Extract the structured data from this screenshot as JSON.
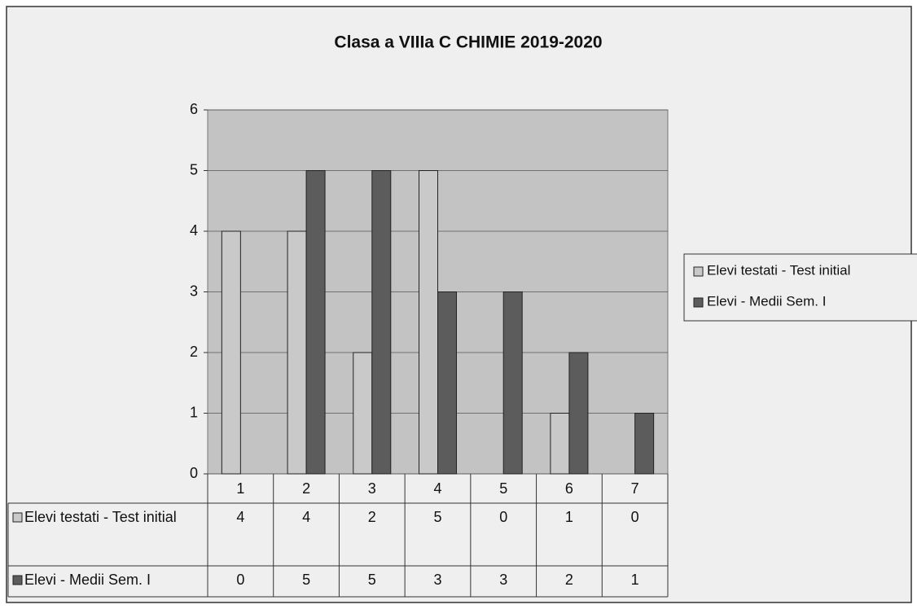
{
  "chart_data": {
    "type": "bar",
    "title": "Clasa a VIIIa C CHIMIE 2019-2020",
    "categories": [
      "1",
      "2",
      "3",
      "4",
      "5",
      "6",
      "7"
    ],
    "series": [
      {
        "name": "Elevi testati - Test initial",
        "color": "#c9c9c9",
        "values": [
          4,
          4,
          2,
          5,
          0,
          1,
          0
        ]
      },
      {
        "name": "Elevi - Medii Sem. I",
        "color": "#5c5c5c",
        "values": [
          0,
          5,
          5,
          3,
          3,
          2,
          1
        ]
      }
    ],
    "ylim": [
      0,
      6
    ],
    "yticks": [
      0,
      1,
      2,
      3,
      4,
      5,
      6
    ],
    "grid": true,
    "legend": "right",
    "data_table": true
  }
}
